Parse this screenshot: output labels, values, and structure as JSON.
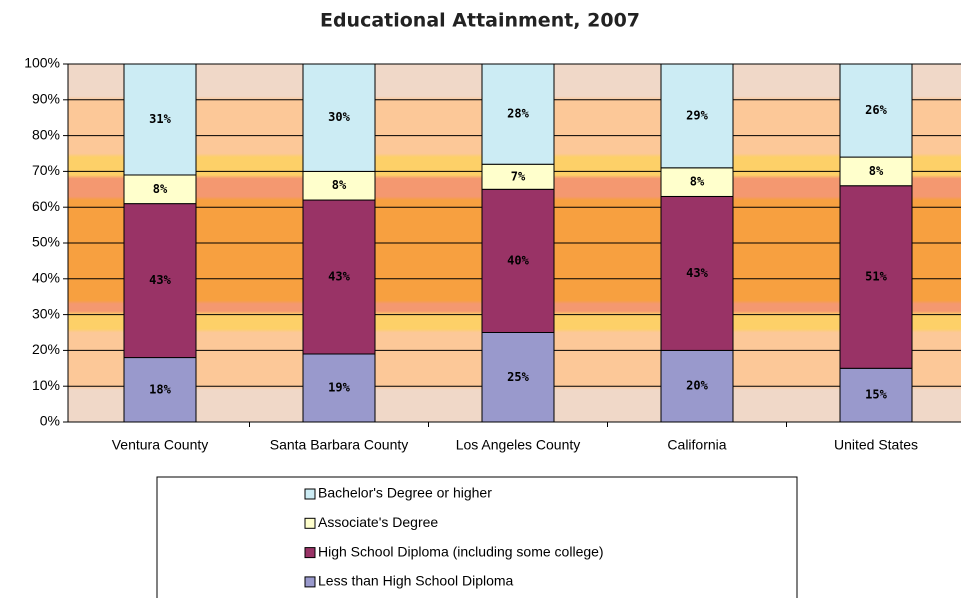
{
  "chart_data": {
    "type": "stacked_bar",
    "title": "Educational Attainment, 2007",
    "categories": [
      "Ventura County",
      "Santa Barbara County",
      "Los Angeles County",
      "California",
      "United States"
    ],
    "series": [
      {
        "name": "Less than High School Diploma",
        "color": "#9999cc",
        "values": [
          18,
          19,
          25,
          20,
          15
        ],
        "value_labels": [
          "18%",
          "19%",
          "25%",
          "20%",
          "15%"
        ]
      },
      {
        "name": "High School Diploma (including some college)",
        "color": "#993366",
        "values": [
          43,
          43,
          40,
          43,
          51
        ],
        "value_labels": [
          "43%",
          "43%",
          "40%",
          "43%",
          "51%"
        ]
      },
      {
        "name": "Associate's Degree",
        "color": "#ffffcc",
        "values": [
          8,
          8,
          7,
          8,
          8
        ],
        "value_labels": [
          "8%",
          "8%",
          "7%",
          "8%",
          "8%"
        ]
      },
      {
        "name": "Bachelor's Degree or higher",
        "color": "#ccecf4",
        "values": [
          31,
          30,
          28,
          29,
          26
        ],
        "value_labels": [
          "31%",
          "30%",
          "28%",
          "29%",
          "26%"
        ]
      }
    ],
    "ylim": [
      0,
      100
    ],
    "yticks": [
      {
        "value": 0,
        "label": "0%"
      },
      {
        "value": 10,
        "label": "10%"
      },
      {
        "value": 20,
        "label": "20%"
      },
      {
        "value": 30,
        "label": "30%"
      },
      {
        "value": 40,
        "label": "40%"
      },
      {
        "value": 50,
        "label": "50%"
      },
      {
        "value": 60,
        "label": "60%"
      },
      {
        "value": 70,
        "label": "70%"
      },
      {
        "value": 80,
        "label": "80%"
      },
      {
        "value": 90,
        "label": "90%"
      },
      {
        "value": 100,
        "label": "100%"
      }
    ],
    "grid": true
  }
}
